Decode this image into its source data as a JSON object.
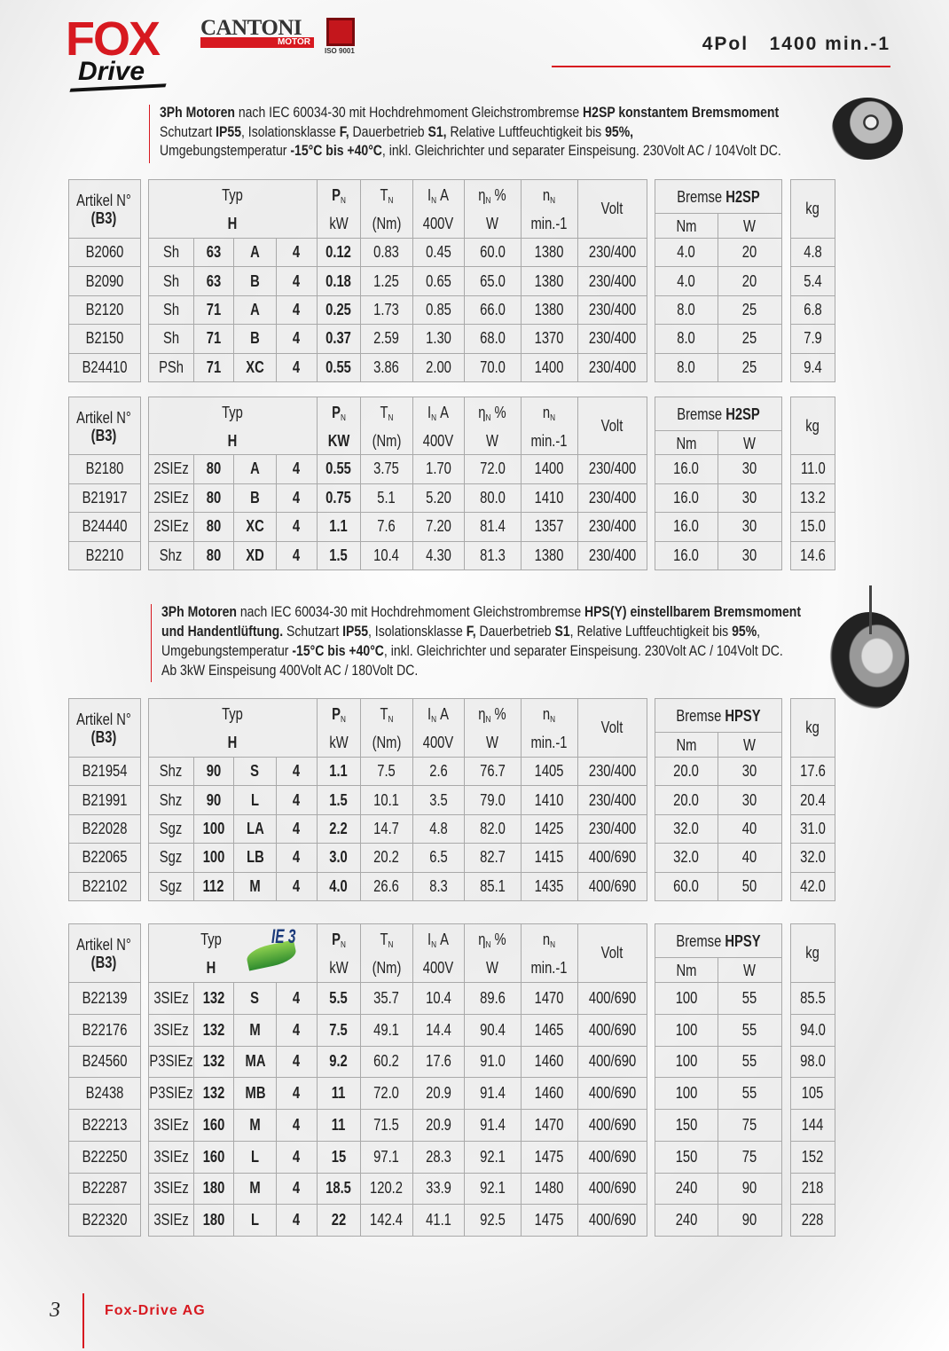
{
  "header": {
    "logo": "FOX",
    "logo_sub": "Drive",
    "brand": "CANTONI",
    "brand_sub": "MOTOR",
    "iso": "ISO 9001",
    "title": "4Pol   1400 min.-1"
  },
  "intros": [
    {
      "lines": [
        [
          {
            "t": "3Ph Motoren",
            "b": true
          },
          {
            "t": " nach IEC 60034-30 mit Hochdrehmoment Gleichstrombremse ",
            "b": false
          },
          {
            "t": "H2SP konstantem Bremsmoment",
            "b": true
          }
        ],
        [
          {
            "t": "Schutzart ",
            "b": false
          },
          {
            "t": "IP55",
            "b": true
          },
          {
            "t": ", Isolationsklasse ",
            "b": false
          },
          {
            "t": "F,",
            "b": true
          },
          {
            "t": " Dauerbetrieb ",
            "b": false
          },
          {
            "t": "S1,",
            "b": true
          },
          {
            "t": " Relative Luftfeuchtigkeit  bis ",
            "b": false
          },
          {
            "t": "95%,",
            "b": true
          }
        ],
        [
          {
            "t": "Umgebungstemperatur ",
            "b": false
          },
          {
            "t": "-15°C bis +40°C",
            "b": true
          },
          {
            "t": ", inkl. Gleichrichter und separater Einspeisung. 230Volt AC / 104Volt DC.",
            "b": false
          }
        ]
      ]
    },
    {
      "lines": [
        [
          {
            "t": "3Ph Motoren",
            "b": true
          },
          {
            "t": " nach IEC 60034-30 mit Hochdrehmoment Gleichstrombremse ",
            "b": false
          },
          {
            "t": "HPS(Y) einstellbarem Bremsmoment",
            "b": true
          }
        ],
        [
          {
            "t": "und Handentlüftung.",
            "b": true
          },
          {
            "t": " Schutzart ",
            "b": false
          },
          {
            "t": "IP55",
            "b": true
          },
          {
            "t": ", Isolationsklasse ",
            "b": false
          },
          {
            "t": "F,",
            "b": true
          },
          {
            "t": " Dauerbetrieb ",
            "b": false
          },
          {
            "t": "S1",
            "b": true
          },
          {
            "t": ", Relative Luftfeuchtigkeit  bis ",
            "b": false
          },
          {
            "t": "95%",
            "b": true
          },
          {
            "t": ",",
            "b": false
          }
        ],
        [
          {
            "t": "Umgebungstemperatur ",
            "b": false
          },
          {
            "t": "-15°C bis +40°C",
            "b": true
          },
          {
            "t": ", inkl. Gleichrichter und separater Einspeisung. 230Volt AC / 104Volt DC.",
            "b": false
          }
        ],
        [
          {
            "t": "Ab 3kW Einspeisung 400Volt AC / 180Volt DC.",
            "b": false
          }
        ]
      ]
    }
  ],
  "tables": [
    {
      "header": {
        "article": [
          "Artikel N°",
          "(B3)"
        ],
        "type": [
          "Typ",
          "H"
        ],
        "power": [
          "P",
          "N",
          "kW"
        ],
        "torque": [
          "T",
          "N",
          "(Nm)"
        ],
        "current": [
          "I",
          "N",
          "A",
          "400V"
        ],
        "efficiency": [
          "η",
          "N",
          "%",
          "W"
        ],
        "speed": [
          "n",
          "N",
          "min.-1"
        ],
        "voltage": "Volt",
        "brake": [
          "Bremse",
          "H2SP"
        ],
        "brake_units": [
          "Nm",
          "W"
        ],
        "weight": "kg"
      },
      "rows": [
        [
          "B2060",
          "Sh",
          "63",
          "A",
          "4",
          "0.12",
          "0.83",
          "0.45",
          "60.0",
          "1380",
          "230/400",
          "4.0",
          "20",
          "4.8"
        ],
        [
          "B2090",
          "Sh",
          "63",
          "B",
          "4",
          "0.18",
          "1.25",
          "0.65",
          "65.0",
          "1380",
          "230/400",
          "4.0",
          "20",
          "5.4"
        ],
        [
          "B2120",
          "Sh",
          "71",
          "A",
          "4",
          "0.25",
          "1.73",
          "0.85",
          "66.0",
          "1380",
          "230/400",
          "8.0",
          "25",
          "6.8"
        ],
        [
          "B2150",
          "Sh",
          "71",
          "B",
          "4",
          "0.37",
          "2.59",
          "1.30",
          "68.0",
          "1370",
          "230/400",
          "8.0",
          "25",
          "7.9"
        ],
        [
          "B24410",
          "PSh",
          "71",
          "XC",
          "4",
          "0.55",
          "3.86",
          "2.00",
          "70.0",
          "1400",
          "230/400",
          "8.0",
          "25",
          "9.4"
        ]
      ]
    },
    {
      "header": {
        "article": [
          "Artikel N°",
          "(B3)"
        ],
        "type": [
          "Typ",
          "H"
        ],
        "power": [
          "P",
          "N",
          "KW"
        ],
        "torque": [
          "T",
          "N",
          "(Nm)"
        ],
        "current": [
          "I",
          "N",
          "A",
          "400V"
        ],
        "efficiency": [
          "η",
          "N",
          "%",
          "W"
        ],
        "speed": [
          "n",
          "N",
          "min.-1"
        ],
        "voltage": "Volt",
        "brake": [
          "Bremse",
          "H2SP"
        ],
        "brake_units": [
          "Nm",
          "W"
        ],
        "weight": "kg"
      },
      "rows": [
        [
          "B2180",
          "2SIEz",
          "80",
          "A",
          "4",
          "0.55",
          "3.75",
          "1.70",
          "72.0",
          "1400",
          "230/400",
          "16.0",
          "30",
          "11.0"
        ],
        [
          "B21917",
          "2SIEz",
          "80",
          "B",
          "4",
          "0.75",
          "5.1",
          "5.20",
          "80.0",
          "1410",
          "230/400",
          "16.0",
          "30",
          "13.2"
        ],
        [
          "B24440",
          "2SIEz",
          "80",
          "XC",
          "4",
          "1.1",
          "7.6",
          "7.20",
          "81.4",
          "1357",
          "230/400",
          "16.0",
          "30",
          "15.0"
        ],
        [
          "B2210",
          "Shz",
          "80",
          "XD",
          "4",
          "1.5",
          "10.4",
          "4.30",
          "81.3",
          "1380",
          "230/400",
          "16.0",
          "30",
          "14.6"
        ]
      ]
    },
    {
      "header": {
        "article": [
          "Artikel N°",
          "(B3)"
        ],
        "type": [
          "Typ",
          "H"
        ],
        "power": [
          "P",
          "N",
          "kW"
        ],
        "torque": [
          "T",
          "N",
          "(Nm)"
        ],
        "current": [
          "I",
          "N",
          "A",
          "400V"
        ],
        "efficiency": [
          "η",
          "N",
          "%",
          "W"
        ],
        "speed": [
          "n",
          "N",
          "min.-1"
        ],
        "voltage": "Volt",
        "brake": [
          "Bremse",
          "HPSY"
        ],
        "brake_units": [
          "Nm",
          "W"
        ],
        "weight": "kg"
      },
      "rows": [
        [
          "B21954",
          "Shz",
          "90",
          "S",
          "4",
          "1.1",
          "7.5",
          "2.6",
          "76.7",
          "1405",
          "230/400",
          "20.0",
          "30",
          "17.6"
        ],
        [
          "B21991",
          "Shz",
          "90",
          "L",
          "4",
          "1.5",
          "10.1",
          "3.5",
          "79.0",
          "1410",
          "230/400",
          "20.0",
          "30",
          "20.4"
        ],
        [
          "B22028",
          "Sgz",
          "100",
          "LA",
          "4",
          "2.2",
          "14.7",
          "4.8",
          "82.0",
          "1425",
          "230/400",
          "32.0",
          "40",
          "31.0"
        ],
        [
          "B22065",
          "Sgz",
          "100",
          "LB",
          "4",
          "3.0",
          "20.2",
          "6.5",
          "82.7",
          "1415",
          "400/690",
          "32.0",
          "40",
          "32.0"
        ],
        [
          "B22102",
          "Sgz",
          "112",
          "M",
          "4",
          "4.0",
          "26.6",
          "8.3",
          "85.1",
          "1435",
          "400/690",
          "60.0",
          "50",
          "42.0"
        ]
      ]
    },
    {
      "header": {
        "article": [
          "Artikel N°",
          "(B3)"
        ],
        "type": [
          "Typ",
          "H"
        ],
        "badge": "IE 3",
        "power": [
          "P",
          "N",
          "kW"
        ],
        "torque": [
          "T",
          "N",
          "(Nm)"
        ],
        "current": [
          "I",
          "N",
          "A",
          "400V"
        ],
        "efficiency": [
          "η",
          "N",
          "%",
          "W"
        ],
        "speed": [
          "n",
          "N",
          "min.-1"
        ],
        "voltage": "Volt",
        "brake": [
          "Bremse",
          "HPSY"
        ],
        "brake_units": [
          "Nm",
          "W"
        ],
        "weight": "kg"
      },
      "rows": [
        [
          "B22139",
          "3SIEz",
          "132",
          "S",
          "4",
          "5.5",
          "35.7",
          "10.4",
          "89.6",
          "1470",
          "400/690",
          "100",
          "55",
          "85.5"
        ],
        [
          "B22176",
          "3SIEz",
          "132",
          "M",
          "4",
          "7.5",
          "49.1",
          "14.4",
          "90.4",
          "1465",
          "400/690",
          "100",
          "55",
          "94.0"
        ],
        [
          "B24560",
          "P3SIEz",
          "132",
          "MA",
          "4",
          "9.2",
          "60.2",
          "17.6",
          "91.0",
          "1460",
          "400/690",
          "100",
          "55",
          "98.0"
        ],
        [
          "B2438",
          "P3SIEz",
          "132",
          "MB",
          "4",
          "11",
          "72.0",
          "20.9",
          "91.4",
          "1460",
          "400/690",
          "100",
          "55",
          "105"
        ],
        [
          "B22213",
          "3SIEz",
          "160",
          "M",
          "4",
          "11",
          "71.5",
          "20.9",
          "91.4",
          "1470",
          "400/690",
          "150",
          "75",
          "144"
        ],
        [
          "B22250",
          "3SIEz",
          "160",
          "L",
          "4",
          "15",
          "97.1",
          "28.3",
          "92.1",
          "1475",
          "400/690",
          "150",
          "75",
          "152"
        ],
        [
          "B22287",
          "3SIEz",
          "180",
          "M",
          "4",
          "18.5",
          "120.2",
          "33.9",
          "92.1",
          "1480",
          "400/690",
          "240",
          "90",
          "218"
        ],
        [
          "B22320",
          "3SIEz",
          "180",
          "L",
          "4",
          "22",
          "142.4",
          "41.1",
          "92.5",
          "1475",
          "400/690",
          "240",
          "90",
          "228"
        ]
      ]
    }
  ],
  "footer": {
    "page": "3",
    "company": "Fox-Drive AG"
  }
}
